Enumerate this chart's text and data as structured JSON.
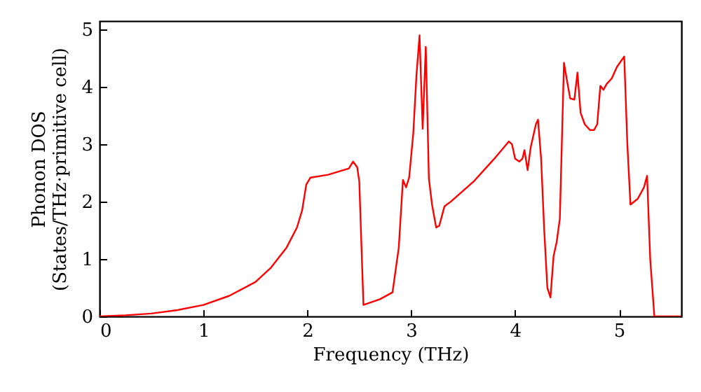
{
  "chart_data": {
    "type": "line",
    "xlabel": "Frequency (THz)",
    "ylabel": "Phonon DOS\n(States/THz·primitive cell)",
    "xlim": [
      0,
      5.6
    ],
    "xticks": [
      0,
      1,
      2,
      3,
      4,
      5
    ],
    "ylim": [
      0,
      5.15
    ],
    "yticks": [
      0,
      1,
      2,
      3,
      4,
      5
    ],
    "grid": false,
    "marker": "none",
    "line_style": "solid",
    "x": [
      0,
      0.25,
      0.5,
      0.75,
      1,
      1.25,
      1.5,
      1.65,
      1.8,
      1.9,
      1.95,
      1.99,
      2.03,
      2.2,
      2.4,
      2.44,
      2.48,
      2.5,
      2.54,
      2.7,
      2.82,
      2.88,
      2.92,
      2.95,
      2.98,
      3.02,
      3.05,
      3.08,
      3.11,
      3.14,
      3.17,
      3.2,
      3.24,
      3.27,
      3.32,
      3.38,
      3.6,
      3.8,
      3.94,
      3.97,
      4.0,
      4.04,
      4.07,
      4.09,
      4.12,
      4.15,
      4.2,
      4.22,
      4.25,
      4.28,
      4.31,
      4.34,
      4.37,
      4.4,
      4.43,
      4.47,
      4.5,
      4.53,
      4.57,
      4.6,
      4.63,
      4.67,
      4.72,
      4.76,
      4.79,
      4.82,
      4.85,
      4.88,
      4.93,
      4.98,
      5.05,
      5.08,
      5.11,
      5.18,
      5.24,
      5.27,
      5.3,
      5.34,
      5.6
    ],
    "series": [
      {
        "color": "#ff0000",
        "values": [
          0,
          0.02,
          0.05,
          0.11,
          0.2,
          0.36,
          0.6,
          0.85,
          1.2,
          1.55,
          1.85,
          2.3,
          2.42,
          2.47,
          2.58,
          2.7,
          2.6,
          2.35,
          0.2,
          0.3,
          0.42,
          1.2,
          2.38,
          2.25,
          2.42,
          3.2,
          4.2,
          4.9,
          3.27,
          4.7,
          2.4,
          1.95,
          1.55,
          1.58,
          1.92,
          2.0,
          2.35,
          2.75,
          3.05,
          3.0,
          2.75,
          2.7,
          2.75,
          2.9,
          2.55,
          2.95,
          3.35,
          3.43,
          2.75,
          1.5,
          0.5,
          0.33,
          1.05,
          1.3,
          1.7,
          4.42,
          4.1,
          3.8,
          3.78,
          4.25,
          3.55,
          3.35,
          3.25,
          3.25,
          3.35,
          4.02,
          3.95,
          4.05,
          4.15,
          4.35,
          4.53,
          3.0,
          1.95,
          2.05,
          2.25,
          2.45,
          1.0,
          0,
          0
        ]
      }
    ]
  }
}
